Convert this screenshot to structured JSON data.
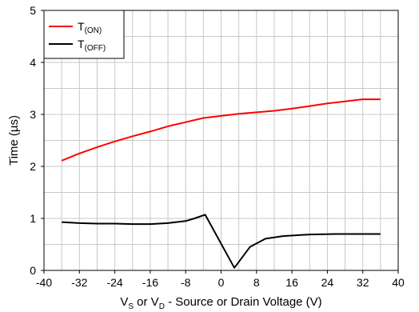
{
  "chart_data": {
    "type": "line",
    "title": "",
    "xlabel": {
      "parts": [
        {
          "text": "V",
          "sub": false
        },
        {
          "text": "S",
          "sub": true
        },
        {
          "text": " or V",
          "sub": false
        },
        {
          "text": "D",
          "sub": true
        },
        {
          "text": " - Source or Drain Voltage (V)",
          "sub": false
        }
      ]
    },
    "ylabel": "Time (µs)",
    "xlim": [
      -40,
      40
    ],
    "ylim": [
      0,
      5
    ],
    "xticks": [
      -40,
      -32,
      -24,
      -16,
      -8,
      0,
      8,
      16,
      24,
      32,
      40
    ],
    "yticks": [
      0,
      1,
      2,
      3,
      4,
      5
    ],
    "x_minor_step": 4,
    "y_minor_step": 0.5,
    "grid": true,
    "legend_position": "top-left",
    "series": [
      {
        "name": "T(ON)",
        "legend": {
          "main": "T",
          "sub": "(ON)"
        },
        "color": "#ff0000",
        "points": [
          [
            -36,
            2.11
          ],
          [
            -32,
            2.25
          ],
          [
            -28,
            2.37
          ],
          [
            -24,
            2.48
          ],
          [
            -20,
            2.58
          ],
          [
            -16,
            2.67
          ],
          [
            -12,
            2.77
          ],
          [
            -8,
            2.85
          ],
          [
            -4,
            2.93
          ],
          [
            0,
            2.97
          ],
          [
            4,
            3.01
          ],
          [
            8,
            3.04
          ],
          [
            12,
            3.07
          ],
          [
            16,
            3.11
          ],
          [
            20,
            3.16
          ],
          [
            24,
            3.21
          ],
          [
            28,
            3.25
          ],
          [
            32,
            3.29
          ],
          [
            36,
            3.29
          ]
        ]
      },
      {
        "name": "T(OFF)",
        "legend": {
          "main": "T",
          "sub": "(OFF)"
        },
        "color": "#000000",
        "points": [
          [
            -36,
            0.93
          ],
          [
            -32,
            0.91
          ],
          [
            -28,
            0.9
          ],
          [
            -24,
            0.9
          ],
          [
            -20,
            0.89
          ],
          [
            -16,
            0.89
          ],
          [
            -12,
            0.91
          ],
          [
            -8,
            0.95
          ],
          [
            -6,
            1.0
          ],
          [
            -3.6,
            1.07
          ],
          [
            3,
            0.05
          ],
          [
            6.5,
            0.45
          ],
          [
            10,
            0.61
          ],
          [
            14,
            0.66
          ],
          [
            20,
            0.69
          ],
          [
            26,
            0.7
          ],
          [
            32,
            0.7
          ],
          [
            36,
            0.7
          ]
        ]
      }
    ]
  }
}
